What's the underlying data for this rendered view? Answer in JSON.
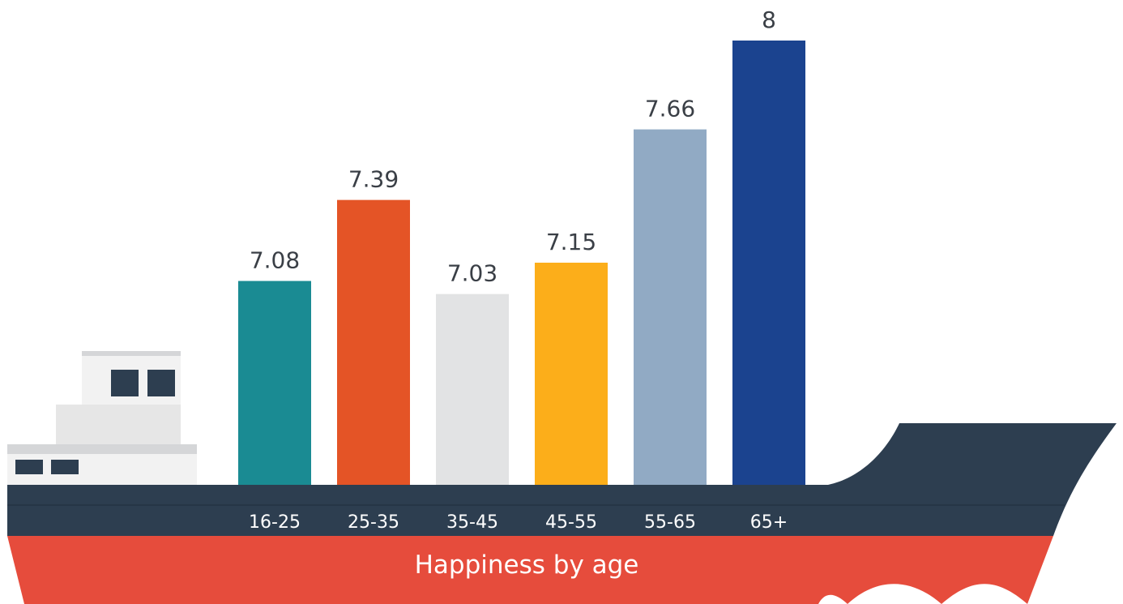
{
  "chart_data": {
    "type": "bar",
    "title": "Happiness by age",
    "categories": [
      "16-25",
      "25-35",
      "35-45",
      "45-55",
      "55-65",
      "65+"
    ],
    "values": [
      7.08,
      7.39,
      7.03,
      7.15,
      7.66,
      8
    ],
    "value_labels": [
      "7.08",
      "7.39",
      "7.03",
      "7.15",
      "7.66",
      "8"
    ],
    "bar_colors": [
      "#1a8b93",
      "#e45426",
      "#e2e3e4",
      "#fcae1a",
      "#91aac4",
      "#1b438f"
    ],
    "ylim": [
      6.3,
      8
    ],
    "grid": false,
    "legend": "none"
  },
  "colors": {
    "hull_dark": "#2d3e50",
    "hull_red": "#e64c3c",
    "cabin_light": "#f2f2f2",
    "cabin_mid": "#e6e6e6",
    "cabin_roof": "#d5d6d8",
    "window": "#2d3e50"
  }
}
